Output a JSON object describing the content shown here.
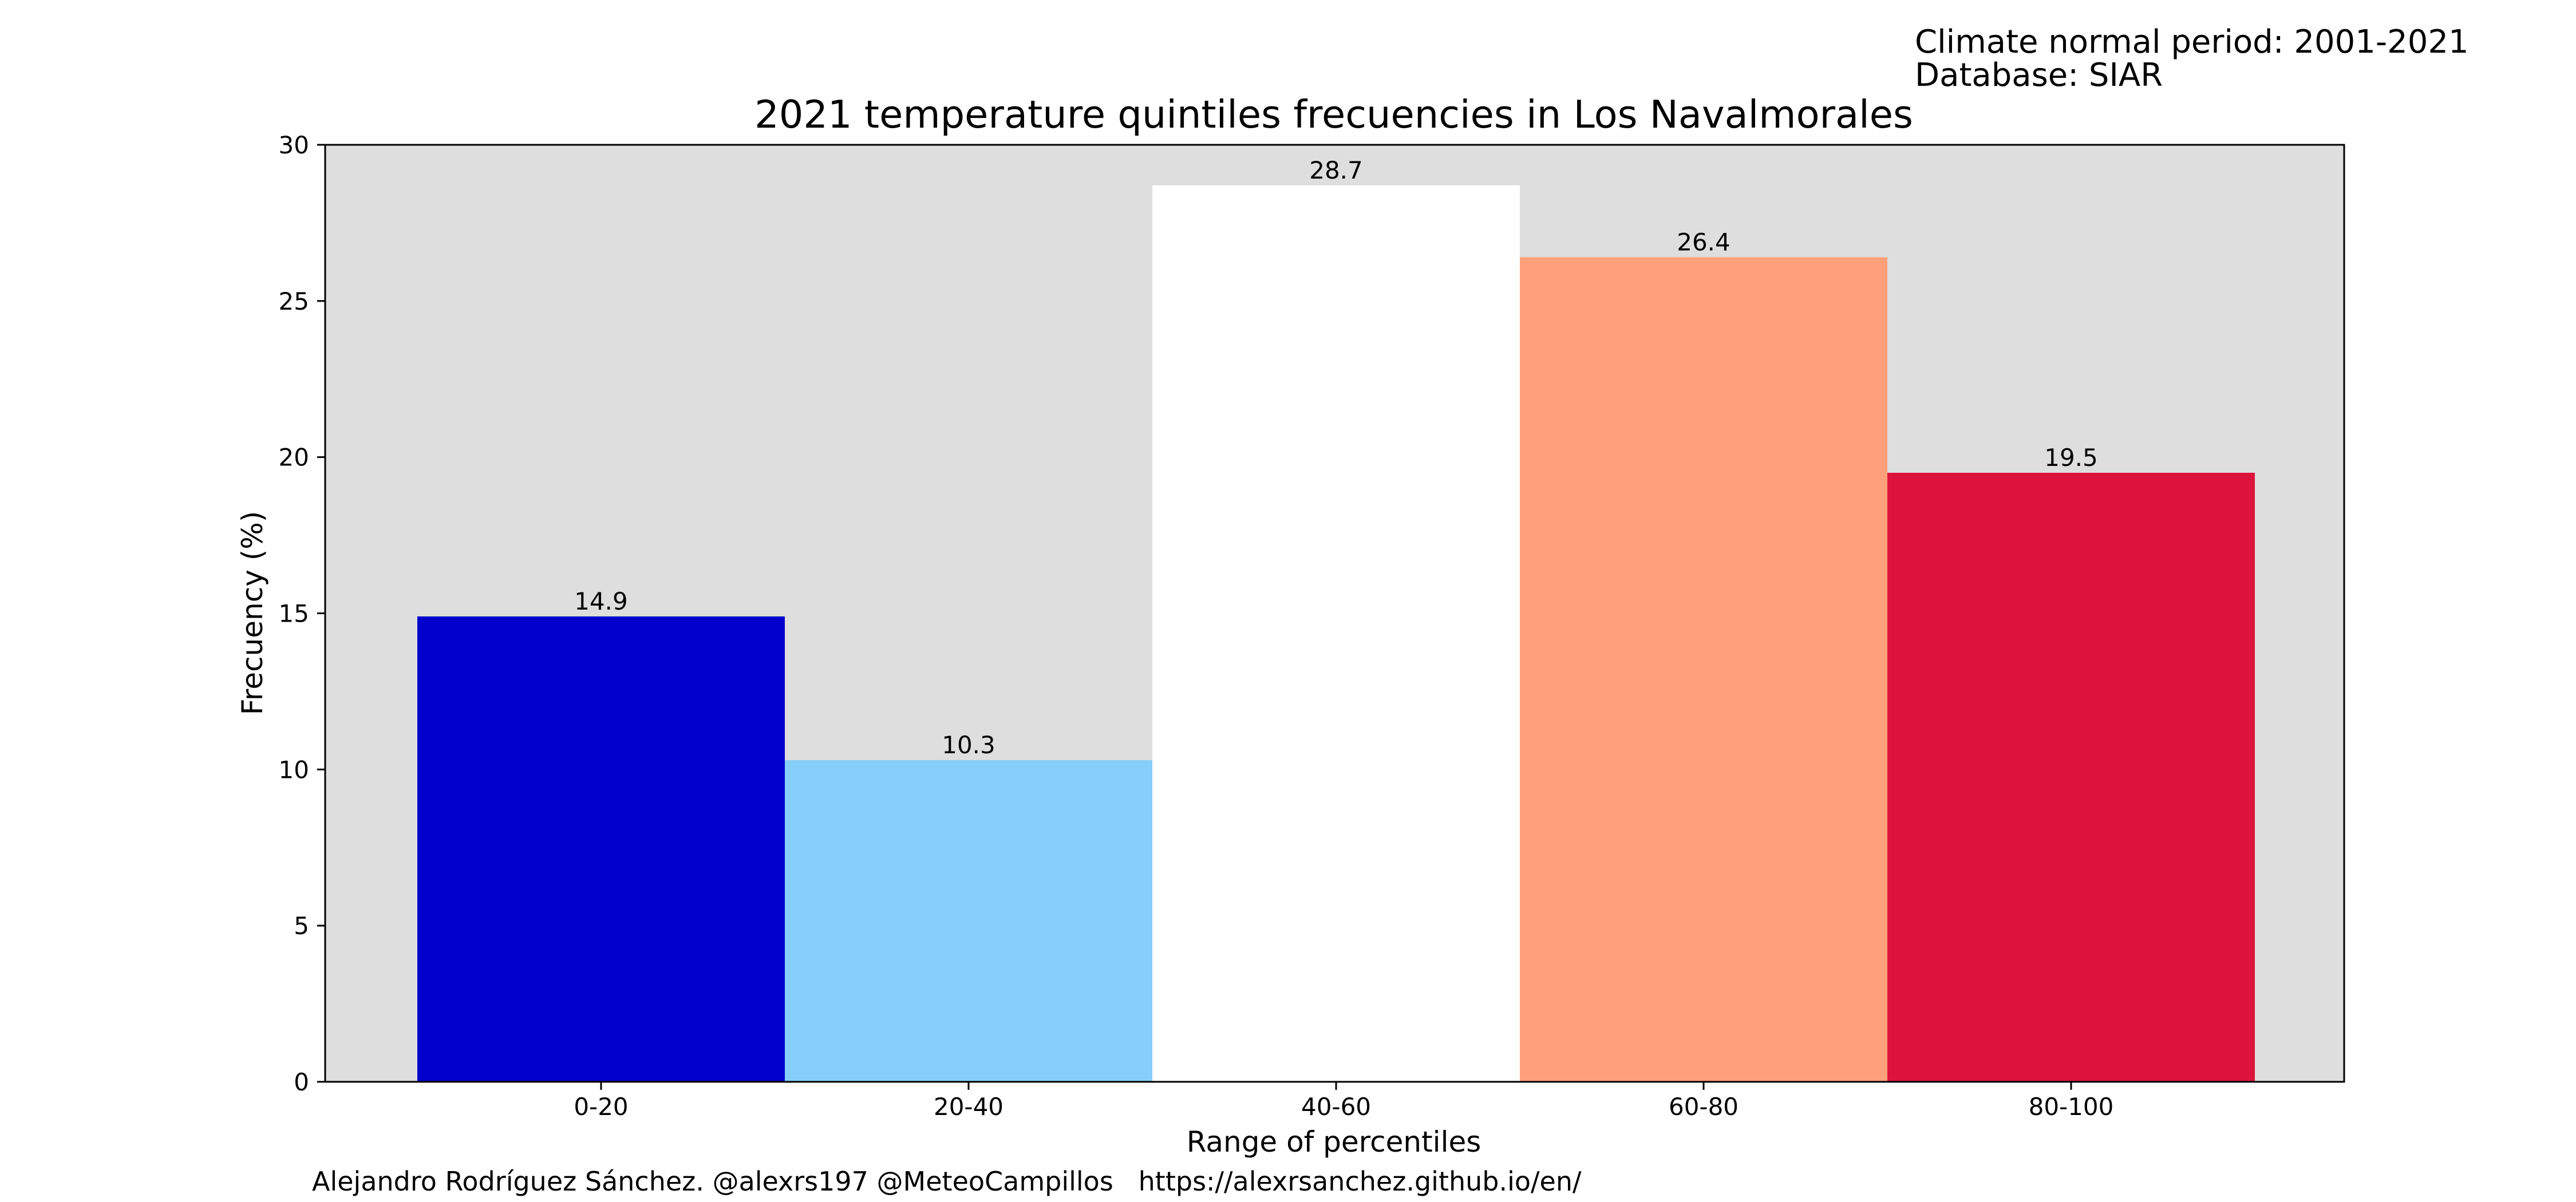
{
  "header": {
    "climate_period": "Climate normal period: 2001-2021",
    "database": "Database: SIAR"
  },
  "footer": {
    "credit": "Alejandro Rodríguez Sánchez. @alexrs197 @MeteoCampillos   https://alexrsanchez.github.io/en/"
  },
  "chart_data": {
    "type": "bar",
    "title": "2021 temperature quintiles frecuencies in Los Navalmorales",
    "xlabel": "Range of percentiles",
    "ylabel": "Frecuency (%)",
    "categories": [
      "0-20",
      "20-40",
      "40-60",
      "60-80",
      "80-100"
    ],
    "values": [
      14.9,
      10.3,
      28.7,
      26.4,
      19.5
    ],
    "value_labels": [
      "14.9",
      "10.3",
      "28.7",
      "26.4",
      "19.5"
    ],
    "colors": [
      "#0000cd",
      "#87cefa",
      "#ffffff",
      "#ffa07a",
      "#dc143c"
    ],
    "ylim": [
      0,
      30
    ],
    "yticks": [
      0,
      5,
      10,
      15,
      20,
      25,
      30
    ],
    "plot_background": "#dedede",
    "grid": false,
    "legend": "none"
  }
}
